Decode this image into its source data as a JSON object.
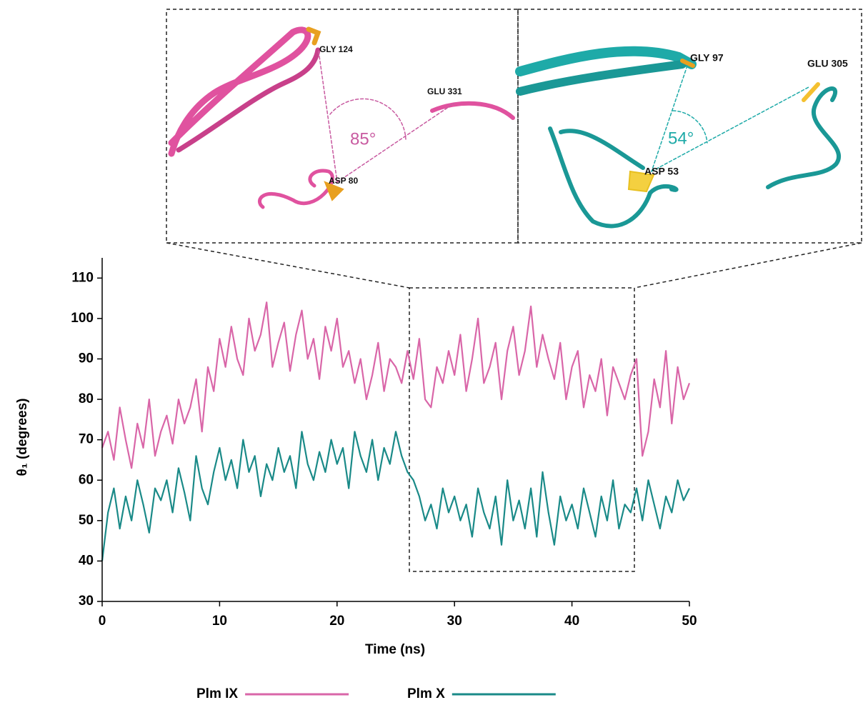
{
  "chart_data": {
    "type": "line",
    "xlabel": "Time (ns)",
    "ylabel": "θ₁ (degrees)",
    "xlim": [
      0,
      50
    ],
    "xticks": [
      0,
      10,
      20,
      30,
      40,
      50
    ],
    "ylim": [
      30,
      115
    ],
    "yticks": [
      30,
      40,
      50,
      60,
      70,
      80,
      90,
      100,
      110
    ],
    "legend": "bottom",
    "annotations": [
      "GLY 124",
      "GLU 331",
      "ASP 80",
      "85°",
      "GLY 97",
      "GLU 305",
      "ASP 53",
      "54°"
    ],
    "x": [
      0,
      0.5,
      1,
      1.5,
      2,
      2.5,
      3,
      3.5,
      4,
      4.5,
      5,
      5.5,
      6,
      6.5,
      7,
      7.5,
      8,
      8.5,
      9,
      9.5,
      10,
      10.5,
      11,
      11.5,
      12,
      12.5,
      13,
      13.5,
      14,
      14.5,
      15,
      15.5,
      16,
      16.5,
      17,
      17.5,
      18,
      18.5,
      19,
      19.5,
      20,
      20.5,
      21,
      21.5,
      22,
      22.5,
      23,
      23.5,
      24,
      24.5,
      25,
      25.5,
      26,
      26.5,
      27,
      27.5,
      28,
      28.5,
      29,
      29.5,
      30,
      30.5,
      31,
      31.5,
      32,
      32.5,
      33,
      33.5,
      34,
      34.5,
      35,
      35.5,
      36,
      36.5,
      37,
      37.5,
      38,
      38.5,
      39,
      39.5,
      40,
      40.5,
      41,
      41.5,
      42,
      42.5,
      43,
      43.5,
      44,
      44.5,
      45,
      45.5,
      46,
      46.5,
      47,
      47.5,
      48,
      48.5,
      49,
      49.5,
      50
    ],
    "series": [
      {
        "name": "Plm IX",
        "color": "#d966a8",
        "values": [
          68,
          72,
          65,
          78,
          70,
          63,
          74,
          68,
          80,
          66,
          72,
          76,
          69,
          80,
          74,
          78,
          85,
          72,
          88,
          82,
          95,
          88,
          98,
          90,
          86,
          100,
          92,
          96,
          104,
          88,
          94,
          99,
          87,
          96,
          102,
          90,
          95,
          85,
          98,
          92,
          100,
          88,
          92,
          84,
          90,
          80,
          86,
          94,
          82,
          90,
          88,
          84,
          92,
          85,
          95,
          80,
          78,
          88,
          84,
          92,
          86,
          96,
          82,
          90,
          100,
          84,
          88,
          94,
          80,
          92,
          98,
          86,
          92,
          103,
          88,
          96,
          90,
          85,
          94,
          80,
          88,
          92,
          78,
          86,
          82,
          90,
          76,
          88,
          84,
          80,
          86,
          90,
          66,
          72,
          85,
          78,
          92,
          74,
          88,
          80,
          84
        ]
      },
      {
        "name": "Plm X",
        "color": "#1a8a88",
        "values": [
          40,
          52,
          58,
          48,
          56,
          50,
          60,
          54,
          47,
          58,
          55,
          60,
          52,
          63,
          57,
          50,
          66,
          58,
          54,
          62,
          68,
          60,
          65,
          58,
          70,
          62,
          66,
          56,
          64,
          60,
          68,
          62,
          66,
          58,
          72,
          64,
          60,
          67,
          62,
          70,
          64,
          68,
          58,
          72,
          66,
          62,
          70,
          60,
          68,
          64,
          72,
          66,
          62,
          60,
          56,
          50,
          54,
          48,
          58,
          52,
          56,
          50,
          54,
          46,
          58,
          52,
          48,
          56,
          44,
          60,
          50,
          55,
          48,
          58,
          46,
          62,
          52,
          44,
          56,
          50,
          54,
          48,
          58,
          52,
          46,
          56,
          50,
          60,
          48,
          54,
          52,
          58,
          50,
          60,
          54,
          48,
          56,
          52,
          60,
          55,
          58
        ]
      }
    ]
  }
}
